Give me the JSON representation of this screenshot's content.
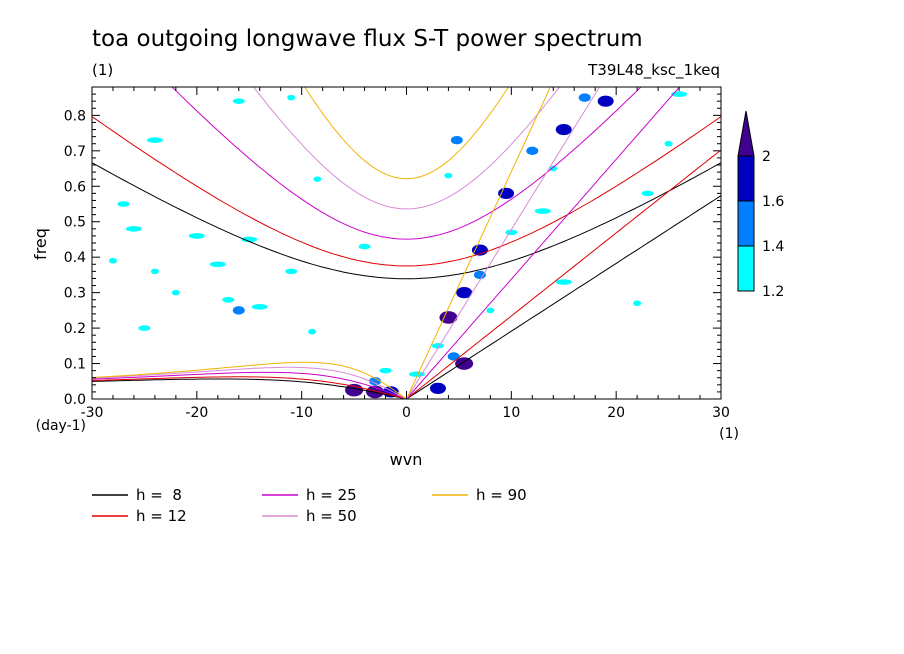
{
  "chart_data": {
    "type": "line",
    "title": "toa outgoing longwave flux S-T power spectrum",
    "subtitle_left": "(1)",
    "subtitle_right": "T39L48_ksc_1keq",
    "xlabel": "wvn",
    "ylabel": "freq",
    "x_unit": "(1)",
    "y_unit": "(day-1)",
    "xlim": [
      -30,
      30
    ],
    "ylim": [
      0,
      0.88
    ],
    "xticks": [
      -30,
      -20,
      -10,
      0,
      10,
      20,
      30
    ],
    "xtick_labels": [
      "-30",
      "-20",
      "-10",
      "0",
      "10",
      "20",
      "30"
    ],
    "yticks": [
      0,
      0.1,
      0.2,
      0.3,
      0.4,
      0.5,
      0.6,
      0.7,
      0.8
    ],
    "ytick_labels": [
      "0.0",
      "0.1",
      "0.2",
      "0.3",
      "0.4",
      "0.5",
      "0.6",
      "0.7",
      "0.8"
    ],
    "series": [
      {
        "name": "h =  8",
        "h": 8,
        "color": "#000000"
      },
      {
        "name": "h = 12",
        "h": 12,
        "color": "#e00000"
      },
      {
        "name": "h = 25",
        "h": 25,
        "color": "#cc00cc"
      },
      {
        "name": "h = 50",
        "h": 50,
        "color": "#d98bd9"
      },
      {
        "name": "h = 90",
        "h": 90,
        "color": "#f0b400"
      }
    ],
    "colorbar": {
      "levels": [
        "1.2",
        "1.4",
        "1.6",
        "2"
      ],
      "colors": [
        "#00ffff",
        "#0080ff",
        "#0000c0",
        "#400090"
      ]
    },
    "contours": [
      {
        "x": -3,
        "y": 0.02,
        "level": 3
      },
      {
        "x": -5,
        "y": 0.025,
        "level": 3
      },
      {
        "x": 5.5,
        "y": 0.1,
        "level": 3
      },
      {
        "x": 4,
        "y": 0.23,
        "level": 3
      },
      {
        "x": -1.5,
        "y": 0.02,
        "level": 2
      },
      {
        "x": 3,
        "y": 0.03,
        "level": 2
      },
      {
        "x": 5.5,
        "y": 0.3,
        "level": 2
      },
      {
        "x": 7,
        "y": 0.42,
        "level": 2
      },
      {
        "x": 9.5,
        "y": 0.58,
        "level": 2
      },
      {
        "x": 15,
        "y": 0.76,
        "level": 2
      },
      {
        "x": 19,
        "y": 0.84,
        "level": 2
      },
      {
        "x": -16,
        "y": 0.25,
        "level": 1
      },
      {
        "x": 4.5,
        "y": 0.12,
        "level": 1
      },
      {
        "x": 7,
        "y": 0.35,
        "level": 1
      },
      {
        "x": 12,
        "y": 0.7,
        "level": 1
      },
      {
        "x": 17,
        "y": 0.85,
        "level": 1
      },
      {
        "x": 4.8,
        "y": 0.73,
        "level": 1
      },
      {
        "x": -3,
        "y": 0.05,
        "level": 1
      },
      {
        "x": -22,
        "y": 0.3,
        "level": 0
      },
      {
        "x": -17,
        "y": 0.28,
        "level": 0
      },
      {
        "x": -14,
        "y": 0.26,
        "level": 0
      },
      {
        "x": -9,
        "y": 0.19,
        "level": 0
      },
      {
        "x": -27,
        "y": 0.55,
        "level": 0
      },
      {
        "x": -15,
        "y": 0.45,
        "level": 0
      },
      {
        "x": -8.5,
        "y": 0.62,
        "level": 0
      },
      {
        "x": -16,
        "y": 0.84,
        "level": 0
      },
      {
        "x": -18,
        "y": 0.38,
        "level": 0
      },
      {
        "x": -24,
        "y": 0.36,
        "level": 0
      },
      {
        "x": -25,
        "y": 0.2,
        "level": 0
      },
      {
        "x": -26,
        "y": 0.48,
        "level": 0
      },
      {
        "x": 4,
        "y": 0.63,
        "level": 0
      },
      {
        "x": -4,
        "y": 0.43,
        "level": 0
      },
      {
        "x": 15,
        "y": 0.33,
        "level": 0
      },
      {
        "x": 25,
        "y": 0.72,
        "level": 0
      },
      {
        "x": 23,
        "y": 0.58,
        "level": 0
      },
      {
        "x": 26,
        "y": 0.86,
        "level": 0
      },
      {
        "x": 22,
        "y": 0.27,
        "level": 0
      },
      {
        "x": -2,
        "y": 0.08,
        "level": 0
      },
      {
        "x": 1,
        "y": 0.07,
        "level": 0
      },
      {
        "x": 8,
        "y": 0.25,
        "level": 0
      },
      {
        "x": 10,
        "y": 0.47,
        "level": 0
      },
      {
        "x": 13,
        "y": 0.53,
        "level": 0
      },
      {
        "x": 14,
        "y": 0.65,
        "level": 0
      },
      {
        "x": 3,
        "y": 0.15,
        "level": 0
      },
      {
        "x": -20,
        "y": 0.46,
        "level": 0
      },
      {
        "x": -28,
        "y": 0.39,
        "level": 0
      },
      {
        "x": -11,
        "y": 0.36,
        "level": 0
      },
      {
        "x": -24,
        "y": 0.73,
        "level": 0
      },
      {
        "x": -11,
        "y": 0.85,
        "level": 0
      }
    ]
  }
}
